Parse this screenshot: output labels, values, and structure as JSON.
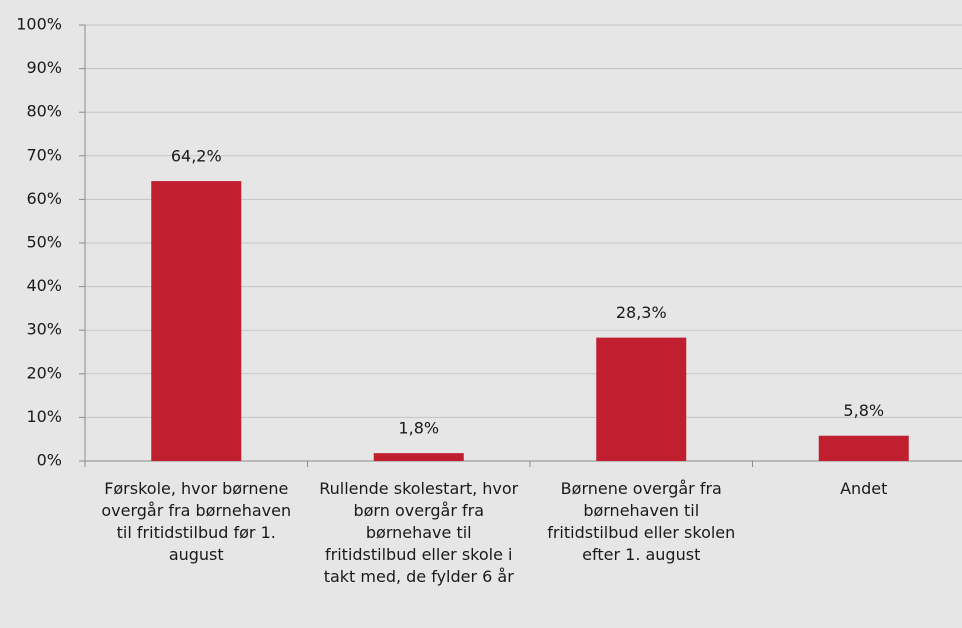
{
  "chart_data": {
    "type": "bar",
    "categories": [
      "Førskole, hvor børnene overgår fra børnehaven til fritidstilbud før 1. august",
      "Rullende skolestart, hvor børn overgår fra børnehave til fritidstilbud eller skole i takt med, de fylder 6 år",
      "Børnene overgår fra børnehaven til fritidstilbud eller skolen efter 1. august",
      "Andet"
    ],
    "values": [
      64.2,
      1.8,
      28.3,
      5.8
    ],
    "value_labels": [
      "64,2%",
      "1,8%",
      "28,3%",
      "5,8%"
    ],
    "color": "#c01f30",
    "ylim": [
      0,
      100
    ],
    "yticks": [
      {
        "value": 0,
        "label": "0%"
      },
      {
        "value": 10,
        "label": "10%"
      },
      {
        "value": 20,
        "label": "20%"
      },
      {
        "value": 30,
        "label": "30%"
      },
      {
        "value": 40,
        "label": "40%"
      },
      {
        "value": 50,
        "label": "50%"
      },
      {
        "value": 60,
        "label": "60%"
      },
      {
        "value": 70,
        "label": "70%"
      },
      {
        "value": 80,
        "label": "80%"
      },
      {
        "value": 90,
        "label": "90%"
      },
      {
        "value": 100,
        "label": "100%"
      }
    ],
    "grid": true
  }
}
